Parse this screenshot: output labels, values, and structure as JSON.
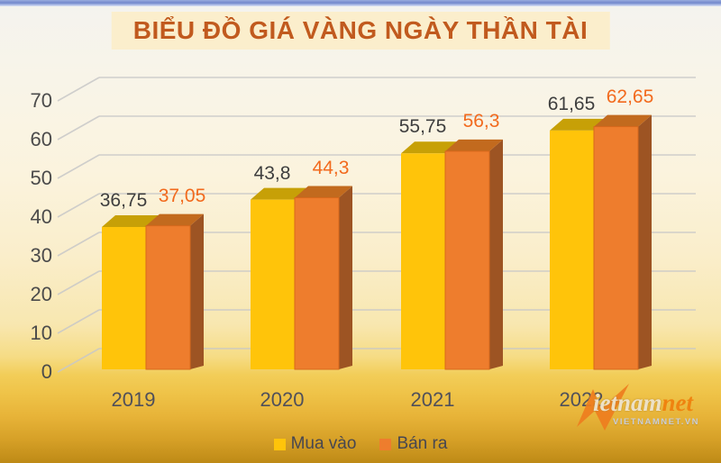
{
  "title": "BIỂU ĐỒ GIÁ VÀNG NGÀY THẦN TÀI",
  "chart_data": {
    "type": "bar",
    "style": "3d-clustered",
    "title": "BIỂU ĐỒ GIÁ VÀNG NGÀY THẦN TÀI",
    "categories": [
      "2019",
      "2020",
      "2021",
      "2022"
    ],
    "series": [
      {
        "name": "Mua vào",
        "color": "#FFC40A",
        "top_color": "#C7A007",
        "values": [
          36.75,
          43.8,
          55.75,
          61.65
        ],
        "labels": [
          "36,75",
          "43,8",
          "55,75",
          "61,65"
        ],
        "label_color": "#3E3E3E"
      },
      {
        "name": "Bán ra",
        "color": "#EE7D2D",
        "top_color": "#C26A1E",
        "side_color": "#9D5423",
        "edge_color": "#D8691C",
        "values": [
          37.05,
          44.3,
          56.3,
          62.65
        ],
        "labels": [
          "37,05",
          "44,3",
          "56,3",
          "62,65"
        ],
        "label_color": "#F26A1D"
      }
    ],
    "y_ticks": [
      0,
      10,
      20,
      30,
      40,
      50,
      60,
      70
    ],
    "ylim": [
      0,
      70
    ],
    "grid": true,
    "grid_color": "#C8C8C8",
    "legend_position": "bottom",
    "xlabel": "",
    "ylabel": ""
  },
  "legend": {
    "items": [
      {
        "label": "Mua vào",
        "color": "#FFC40A"
      },
      {
        "label": "Bán ra",
        "color": "#EE7D2D"
      }
    ]
  },
  "watermark": {
    "logo_main": "ietnam",
    "logo_accent": "net",
    "sub": "VIETNAMNET.VN"
  }
}
